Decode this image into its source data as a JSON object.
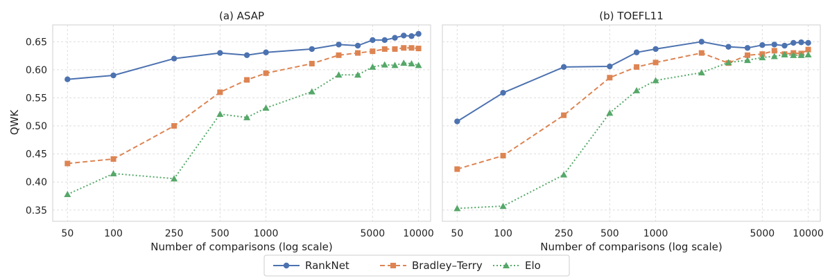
{
  "chart_data": {
    "type": "line",
    "shared": {
      "ylabel": "QWK",
      "ylim": [
        0.33,
        0.68
      ],
      "yticks": [
        0.35,
        0.4,
        0.45,
        0.5,
        0.55,
        0.6,
        0.65
      ],
      "ytick_labels": [
        "0.35",
        "0.40",
        "0.45",
        "0.50",
        "0.55",
        "0.60",
        "0.65"
      ],
      "xscale": "log",
      "xlim": [
        40,
        12000
      ],
      "xticks": [
        50,
        100,
        250,
        500,
        1000,
        5000,
        10000
      ],
      "xtick_labels": [
        "50",
        "100",
        "250",
        "500",
        "1000",
        "5000",
        "10000"
      ],
      "grid": true,
      "legend": {
        "placement": "bottom-center",
        "entries": [
          {
            "name": "RankNet",
            "color": "#4c72b0",
            "marker": "circle",
            "linestyle": "solid"
          },
          {
            "name": "Bradley–Terry",
            "color": "#dd8452",
            "marker": "square",
            "linestyle": "dashed"
          },
          {
            "name": "Elo",
            "color": "#55a868",
            "marker": "triangle",
            "linestyle": "dotted"
          }
        ]
      }
    },
    "panels": [
      {
        "title": "(a) ASAP",
        "xlabel": "Number of comparisons (log scale)",
        "x": [
          50,
          100,
          250,
          500,
          750,
          1000,
          2000,
          3000,
          4000,
          5000,
          6000,
          7000,
          8000,
          9000,
          10000
        ],
        "series": [
          {
            "name": "RankNet",
            "values": [
              0.583,
              0.59,
              0.62,
              0.63,
              0.626,
              0.631,
              0.637,
              0.645,
              0.643,
              0.653,
              0.653,
              0.657,
              0.661,
              0.66,
              0.664
            ]
          },
          {
            "name": "Bradley–Terry",
            "values": [
              0.433,
              0.441,
              0.5,
              0.56,
              0.582,
              0.594,
              0.611,
              0.626,
              0.63,
              0.633,
              0.637,
              0.637,
              0.639,
              0.639,
              0.638
            ]
          },
          {
            "name": "Elo",
            "values": [
              0.378,
              0.415,
              0.406,
              0.521,
              0.515,
              0.532,
              0.561,
              0.591,
              0.591,
              0.605,
              0.609,
              0.608,
              0.612,
              0.611,
              0.608
            ]
          }
        ]
      },
      {
        "title": "(b) TOEFL11",
        "xlabel": "Number of comparisons (log scale)",
        "x": [
          50,
          100,
          250,
          500,
          750,
          1000,
          2000,
          3000,
          4000,
          5000,
          6000,
          7000,
          8000,
          9000,
          10000
        ],
        "series": [
          {
            "name": "RankNet",
            "values": [
              0.508,
              0.559,
              0.605,
              0.606,
              0.631,
              0.637,
              0.65,
              0.641,
              0.639,
              0.644,
              0.645,
              0.643,
              0.648,
              0.649,
              0.648
            ]
          },
          {
            "name": "Bradley–Terry",
            "values": [
              0.423,
              0.447,
              0.519,
              0.586,
              0.605,
              0.613,
              0.63,
              0.612,
              0.626,
              0.628,
              0.634,
              0.628,
              0.63,
              0.629,
              0.636
            ]
          },
          {
            "name": "Elo",
            "values": [
              0.353,
              0.357,
              0.413,
              0.523,
              0.563,
              0.581,
              0.595,
              0.613,
              0.617,
              0.622,
              0.624,
              0.627,
              0.626,
              0.626,
              0.627
            ]
          }
        ]
      }
    ]
  }
}
